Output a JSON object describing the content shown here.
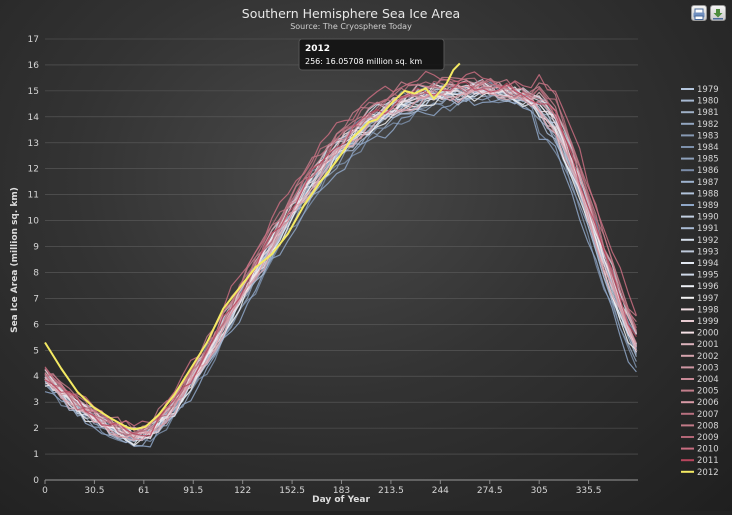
{
  "chart_data": {
    "type": "line",
    "title": "Southern Hemisphere Sea Ice Area",
    "subtitle": "Source: The Cryosphere Today",
    "xlabel": "Day of Year",
    "ylabel": "Sea Ice Area (million sq. km)",
    "xlim": [
      0,
      366
    ],
    "ylim": [
      0,
      17
    ],
    "x_ticks": [
      0,
      30.5,
      61,
      91.5,
      122,
      152.5,
      183,
      213.5,
      244,
      274.5,
      305,
      335.5
    ],
    "y_ticks": [
      0,
      1,
      2,
      3,
      4,
      5,
      6,
      7,
      8,
      9,
      10,
      11,
      12,
      13,
      14,
      15,
      16,
      17
    ],
    "grid": true,
    "legend": "right",
    "tooltip": {
      "title": "2012",
      "text": "256: 16.05708 million sq. km"
    },
    "highlight_color": "#f4ea63",
    "series": [
      {
        "name": "1979",
        "shift": -0.2,
        "color": "#b5c7de",
        "values": [
          [
            0,
            3.9
          ],
          [
            20,
            2.8
          ],
          [
            40,
            2.0
          ],
          [
            55,
            1.6
          ],
          [
            65,
            1.8
          ],
          [
            80,
            2.8
          ],
          [
            100,
            4.7
          ],
          [
            120,
            6.9
          ],
          [
            140,
            9.0
          ],
          [
            160,
            11.0
          ],
          [
            180,
            12.6
          ],
          [
            200,
            13.7
          ],
          [
            220,
            14.4
          ],
          [
            240,
            14.8
          ],
          [
            255,
            14.9
          ],
          [
            270,
            15.0
          ],
          [
            285,
            14.9
          ],
          [
            300,
            14.6
          ],
          [
            315,
            13.6
          ],
          [
            330,
            11.2
          ],
          [
            345,
            8.3
          ],
          [
            358,
            6.0
          ],
          [
            365,
            5.1
          ]
        ]
      },
      {
        "name": "1980",
        "shift": -0.05,
        "color": "#a7b9d2"
      },
      {
        "name": "1981",
        "shift": 0.05,
        "color": "#9fb0c6"
      },
      {
        "name": "1982",
        "shift": -0.15,
        "color": "#93a6c0"
      },
      {
        "name": "1983",
        "shift": 0.1,
        "color": "#8799b3"
      },
      {
        "name": "1984",
        "shift": -0.25,
        "color": "#7d90ab"
      },
      {
        "name": "1985",
        "shift": 0.0,
        "color": "#8ea1bb"
      },
      {
        "name": "1986",
        "shift": 0.15,
        "color": "#7b8ca8"
      },
      {
        "name": "1987",
        "shift": -0.1,
        "color": "#9eb3cf"
      },
      {
        "name": "1988",
        "shift": 0.05,
        "color": "#b1c3db"
      },
      {
        "name": "1989",
        "shift": -0.3,
        "color": "#8fa7c8"
      },
      {
        "name": "1990",
        "shift": 0.0,
        "color": "#c3d0e2"
      },
      {
        "name": "1991",
        "shift": -0.12,
        "color": "#a9bbd4"
      },
      {
        "name": "1992",
        "shift": 0.2,
        "color": "#d7dfea"
      },
      {
        "name": "1993",
        "shift": 0.08,
        "color": "#bfcadb"
      },
      {
        "name": "1994",
        "shift": -0.05,
        "color": "#e2e8f1"
      },
      {
        "name": "1995",
        "shift": 0.18,
        "color": "#cfd9e8"
      },
      {
        "name": "1996",
        "shift": 0.1,
        "color": "#eef1f6"
      },
      {
        "name": "1997",
        "shift": -0.08,
        "color": "#f2f2f2"
      },
      {
        "name": "1998",
        "shift": 0.12,
        "color": "#f0dde1"
      },
      {
        "name": "1999",
        "shift": 0.0,
        "color": "#e8ccd2"
      },
      {
        "name": "2000",
        "shift": 0.05,
        "color": "#f5e1e6"
      },
      {
        "name": "2001",
        "shift": 0.15,
        "color": "#dcb3bc"
      },
      {
        "name": "2002",
        "shift": -0.05,
        "color": "#d6a4ae"
      },
      {
        "name": "2003",
        "shift": 0.22,
        "color": "#cf97a3"
      },
      {
        "name": "2004",
        "shift": 0.1,
        "color": "#c98a97"
      },
      {
        "name": "2005",
        "shift": 0.25,
        "color": "#c27e8b"
      },
      {
        "name": "2006",
        "shift": 0.0,
        "color": "#d89aa6"
      },
      {
        "name": "2007",
        "shift": 0.3,
        "color": "#b8707f"
      },
      {
        "name": "2008",
        "shift": 0.35,
        "color": "#c27a88"
      },
      {
        "name": "2009",
        "shift": 0.2,
        "color": "#b36676"
      },
      {
        "name": "2010",
        "shift": 0.45,
        "color": "#c96d80"
      },
      {
        "name": "2011",
        "shift": 0.15,
        "color": "#b8465d"
      },
      {
        "name": "2012",
        "shift": 0,
        "color": "#f4ea63",
        "values": [
          [
            0,
            5.3
          ],
          [
            10,
            4.3
          ],
          [
            20,
            3.4
          ],
          [
            30,
            2.8
          ],
          [
            40,
            2.4
          ],
          [
            50,
            2.05
          ],
          [
            55,
            1.95
          ],
          [
            62,
            2.05
          ],
          [
            70,
            2.5
          ],
          [
            80,
            3.3
          ],
          [
            90,
            4.3
          ],
          [
            100,
            5.3
          ],
          [
            110,
            6.6
          ],
          [
            120,
            7.4
          ],
          [
            130,
            8.2
          ],
          [
            140,
            8.7
          ],
          [
            150,
            9.5
          ],
          [
            160,
            10.6
          ],
          [
            170,
            11.5
          ],
          [
            180,
            12.3
          ],
          [
            190,
            13.2
          ],
          [
            200,
            13.8
          ],
          [
            205,
            13.9
          ],
          [
            215,
            14.6
          ],
          [
            222,
            15.0
          ],
          [
            228,
            14.9
          ],
          [
            235,
            15.1
          ],
          [
            240,
            14.7
          ],
          [
            248,
            15.3
          ],
          [
            252,
            15.8
          ],
          [
            256,
            16.06
          ]
        ]
      }
    ]
  },
  "toolbar": {
    "print_icon": "printer-icon",
    "export_icon": "download-icon"
  }
}
